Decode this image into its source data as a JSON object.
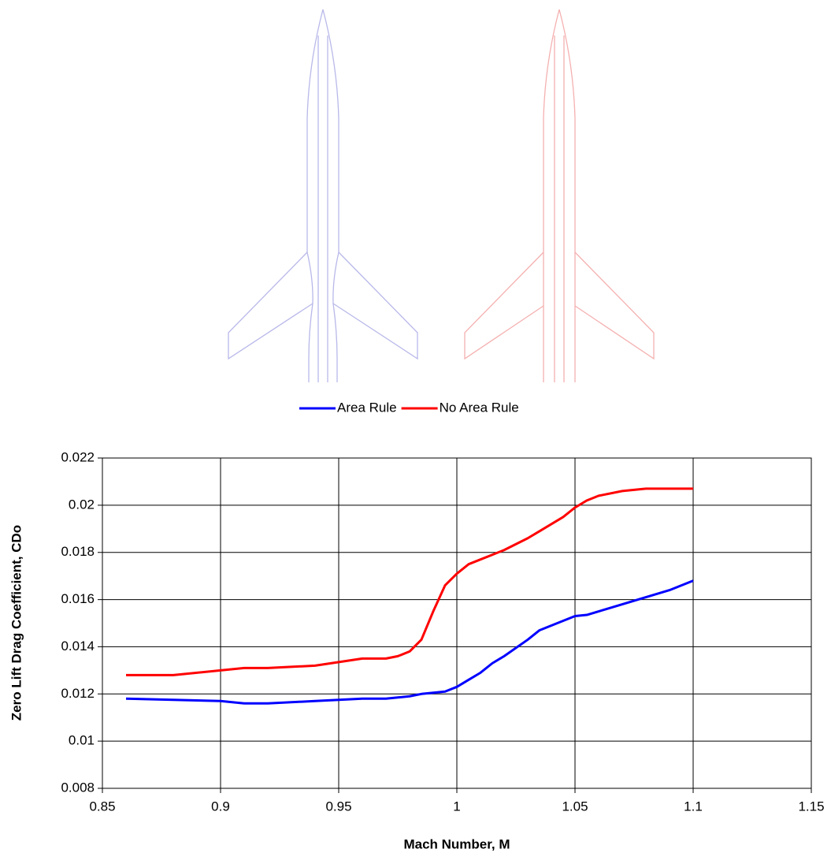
{
  "chart_data": {
    "type": "line",
    "xlabel": "Mach Number, M",
    "ylabel": "Zero Lift Drag Coefficient, CDo",
    "x": [
      0.86,
      0.88,
      0.9,
      0.91,
      0.92,
      0.94,
      0.96,
      0.97,
      0.975,
      0.98,
      0.985,
      0.99,
      0.995,
      1.0,
      1.005,
      1.01,
      1.015,
      1.02,
      1.03,
      1.035,
      1.04,
      1.045,
      1.05,
      1.055,
      1.06,
      1.07,
      1.08,
      1.09,
      1.1
    ],
    "series": [
      {
        "name": "Area Rule",
        "color": "#0000ff",
        "values": [
          0.0118,
          0.01175,
          0.0117,
          0.0116,
          0.0116,
          0.0117,
          0.0118,
          0.0118,
          0.01185,
          0.0119,
          0.012,
          0.01205,
          0.0121,
          0.0123,
          0.0126,
          0.0129,
          0.0133,
          0.0136,
          0.0143,
          0.0147,
          0.0149,
          0.0151,
          0.0153,
          0.01535,
          0.0155,
          0.0158,
          0.0161,
          0.0164,
          0.0168
        ]
      },
      {
        "name": "No Area Rule",
        "color": "#ff0000",
        "values": [
          0.0128,
          0.0128,
          0.013,
          0.0131,
          0.0131,
          0.0132,
          0.0135,
          0.0135,
          0.0136,
          0.0138,
          0.0143,
          0.0155,
          0.0166,
          0.0171,
          0.0175,
          0.0177,
          0.0179,
          0.0181,
          0.0186,
          0.0189,
          0.0192,
          0.0195,
          0.0199,
          0.0202,
          0.0204,
          0.0206,
          0.0207,
          0.0207,
          0.0207
        ]
      }
    ],
    "xlim": [
      0.85,
      1.15
    ],
    "xticks": [
      0.85,
      0.9,
      0.95,
      1,
      1.05,
      1.1,
      1.15
    ],
    "ylim": [
      0.008,
      0.022
    ],
    "yticks": [
      0.008,
      0.01,
      0.012,
      0.014,
      0.016,
      0.018,
      0.02,
      0.022
    ],
    "grid": true,
    "legend": "top"
  }
}
